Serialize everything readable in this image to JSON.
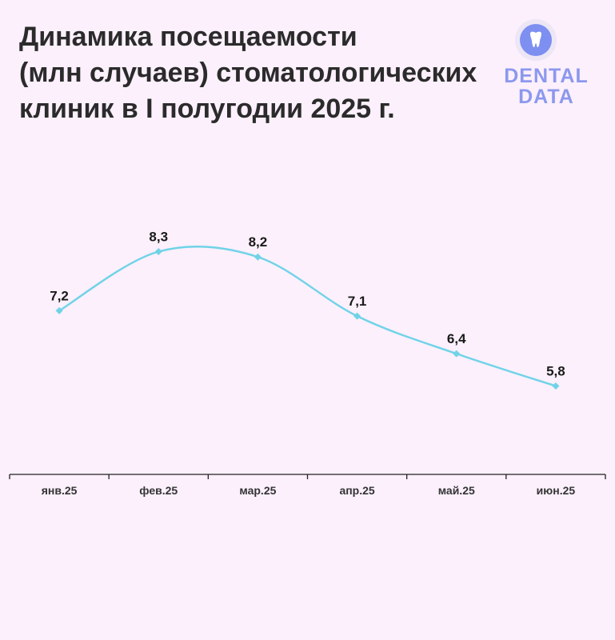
{
  "title_lines": [
    "Динамика посещаемости",
    "(млн случаев) стоматологических",
    "клиник в I полугодии 2025 г."
  ],
  "logo": {
    "line1": "DENTAL",
    "line2": "DATA",
    "icon": "tooth-icon"
  },
  "colors": {
    "line": "#6fd3e8",
    "background": "#fbf0fb",
    "text": "#2b2b2b",
    "logo": "#8c98ee"
  },
  "chart_data": {
    "type": "line",
    "title": "Динамика посещаемости (млн случаев) стоматологических клиник в I полугодии 2025 г.",
    "categories": [
      "янв.25",
      "фев.25",
      "мар.25",
      "апр.25",
      "май.25",
      "июн.25"
    ],
    "series": [
      {
        "values": [
          7.2,
          8.3,
          8.2,
          7.1,
          6.4,
          5.8
        ]
      }
    ],
    "data_labels": [
      "7,2",
      "8,3",
      "8,2",
      "7,1",
      "6,4",
      "5,8"
    ],
    "smooth": true,
    "grid": false,
    "legend": "none"
  }
}
